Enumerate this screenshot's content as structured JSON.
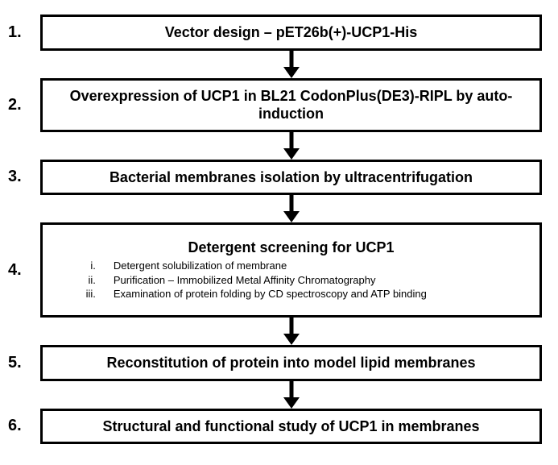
{
  "flowchart": {
    "type": "flowchart",
    "background_color": "#ffffff",
    "box_border_color": "#000000",
    "box_border_width": 3,
    "arrow_color": "#000000",
    "arrow_stroke_width": 5,
    "arrow_height": 34,
    "title_fontsize": 18,
    "title_fontweight": "bold",
    "number_fontsize": 20,
    "number_fontweight": "bold",
    "subitem_fontsize": 13,
    "steps": [
      {
        "number": "1.",
        "title": "Vector design – pET26b(+)-UCP1-His",
        "box_class": "box-simple"
      },
      {
        "number": "2.",
        "title": "Overexpression of UCP1 in BL21 CodonPlus(DE3)-RIPL by auto-induction",
        "box_class": "box-tall"
      },
      {
        "number": "3.",
        "title": "Bacterial membranes isolation by ultracentrifugation",
        "box_class": "box-simple"
      },
      {
        "number": "4.",
        "title": "Detergent screening for UCP1",
        "box_class": "box-detail",
        "subitems": [
          {
            "marker": "i.",
            "text": "Detergent solubilization of membrane"
          },
          {
            "marker": "ii.",
            "text": "Purification – Immobilized Metal Affinity Chromatography"
          },
          {
            "marker": "iii.",
            "text": "Examination of protein folding by CD spectroscopy and ATP binding"
          }
        ]
      },
      {
        "number": "5.",
        "title": "Reconstitution of protein into model lipid membranes",
        "box_class": "box-simple"
      },
      {
        "number": "6.",
        "title": "Structural and functional study of UCP1 in membranes",
        "box_class": "box-simple"
      }
    ]
  }
}
